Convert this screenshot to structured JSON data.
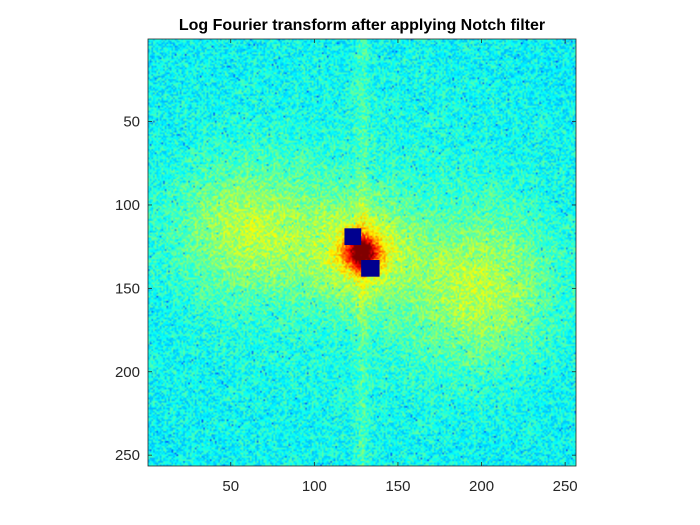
{
  "chart_data": {
    "type": "heatmap",
    "title": "Log Fourier transform after applying Notch filter",
    "xlabel": "",
    "ylabel": "",
    "xlim": [
      0.5,
      256.5
    ],
    "ylim": [
      0.5,
      256.5
    ],
    "y_reversed": true,
    "grid": false,
    "colormap": "jet",
    "image_size": [
      256,
      256
    ],
    "x_ticks": [
      50,
      100,
      150,
      200,
      250
    ],
    "y_ticks": [
      50,
      100,
      150,
      200,
      250
    ],
    "x_tick_labels": [
      "50",
      "100",
      "150",
      "200",
      "250"
    ],
    "y_tick_labels": [
      "50",
      "100",
      "150",
      "200",
      "250"
    ],
    "notches": [
      {
        "x_range": [
          118,
          128
        ],
        "y_range": [
          114,
          124
        ]
      },
      {
        "x_range": [
          128,
          139
        ],
        "y_range": [
          133,
          143
        ]
      }
    ],
    "notch_color": "#00008f",
    "background_color": "#2fd6c9"
  }
}
